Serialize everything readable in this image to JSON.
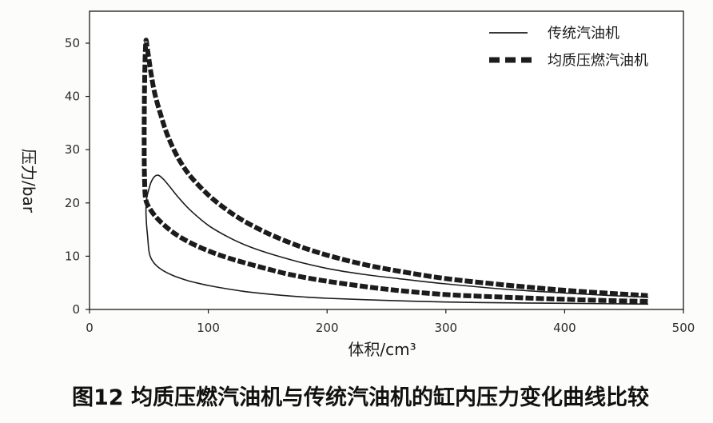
{
  "chart_data": {
    "type": "line",
    "xlabel": "体积/cm³",
    "ylabel": "压力/bar",
    "xlim": [
      0,
      500
    ],
    "ylim": [
      0,
      56
    ],
    "xticks": [
      0,
      100,
      200,
      300,
      400,
      500
    ],
    "yticks": [
      0,
      10,
      20,
      30,
      40,
      50
    ],
    "grid": false,
    "legend_position": "top-right",
    "caption": "图12 均质压燃汽油机与传统汽油机的缸内压力变化曲线比较",
    "series": [
      {
        "name": "传统汽油机",
        "line_style": "solid",
        "color": "#1c1c1c",
        "x": [
          470,
          400,
          350,
          300,
          250,
          200,
          170,
          150,
          130,
          115,
          100,
          90,
          80,
          70,
          62,
          56,
          52,
          50,
          49,
          48,
          47.5,
          48,
          50,
          52,
          55,
          58,
          62,
          67,
          75,
          85,
          100,
          115,
          130,
          150,
          175,
          200,
          230,
          260,
          300,
          350,
          400,
          440,
          470
        ],
        "y": [
          1.0,
          1.15,
          1.25,
          1.4,
          1.7,
          2.1,
          2.5,
          2.9,
          3.4,
          3.9,
          4.5,
          5.0,
          5.6,
          6.4,
          7.3,
          8.3,
          9.5,
          11.0,
          13.5,
          16.0,
          18.5,
          20.7,
          22.6,
          24.0,
          25.0,
          25.2,
          24.5,
          23.2,
          21.0,
          18.6,
          15.8,
          13.8,
          12.2,
          10.6,
          9.0,
          7.7,
          6.6,
          5.8,
          4.8,
          3.8,
          3.1,
          2.6,
          2.3
        ]
      },
      {
        "name": "均质压燃汽油机",
        "line_style": "dashed",
        "color": "#1c1c1c",
        "x": [
          470,
          440,
          400,
          350,
          300,
          250,
          200,
          170,
          150,
          130,
          115,
          100,
          85,
          72,
          62,
          55,
          50,
          47.5,
          46.5,
          46,
          46.2,
          46.8,
          47.5,
          48.5,
          50,
          52,
          55,
          60,
          66,
          75,
          85,
          100,
          115,
          130,
          150,
          175,
          200,
          230,
          260,
          300,
          350,
          400,
          440,
          470
        ],
        "y": [
          1.5,
          1.65,
          1.9,
          2.3,
          2.8,
          3.8,
          5.3,
          6.5,
          7.6,
          8.8,
          9.8,
          11.0,
          12.5,
          14.2,
          16.0,
          17.6,
          19.2,
          20.5,
          23.0,
          30.0,
          40.0,
          47.0,
          50.5,
          49.2,
          47.0,
          44.0,
          40.5,
          36.5,
          32.5,
          28.3,
          25.0,
          21.5,
          18.8,
          16.6,
          14.3,
          12.0,
          10.2,
          8.5,
          7.2,
          5.8,
          4.6,
          3.6,
          3.0,
          2.6
        ]
      }
    ]
  }
}
